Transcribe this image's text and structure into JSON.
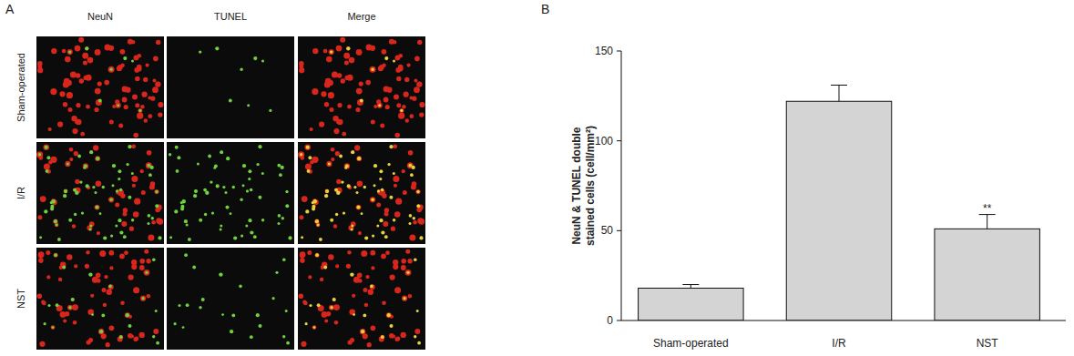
{
  "panel_a": {
    "label": "A",
    "columns": [
      "NeuN",
      "TUNEL",
      "Merge"
    ],
    "rows": [
      "Sham-operated",
      "I/R",
      "NST"
    ]
  },
  "chart_data": {
    "type": "bar",
    "panel_label": "B",
    "y_label": "NeuN & TUNEL double stained cells (cell/mm²)",
    "categories": [
      "Sham-operated",
      "I/R",
      "NST"
    ],
    "values": [
      18,
      122,
      51
    ],
    "errors": [
      2,
      9,
      8
    ],
    "color": "#d4d4d4",
    "ylim": [
      0,
      150
    ],
    "yticks": [
      0,
      50,
      100,
      150
    ],
    "grid": false,
    "annotations": [
      {
        "text": "**",
        "category": "NST"
      }
    ]
  }
}
